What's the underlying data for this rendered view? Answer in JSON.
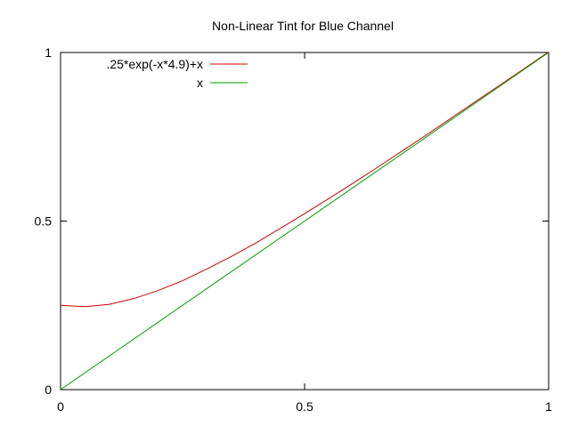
{
  "chart_data": {
    "type": "line",
    "title": "Non-Linear Tint for Blue Channel",
    "xlabel": "",
    "ylabel": "",
    "xlim": [
      0,
      1
    ],
    "ylim": [
      0,
      1
    ],
    "x_ticks": [
      {
        "value": 0,
        "label": "0"
      },
      {
        "value": 0.5,
        "label": "0.5"
      },
      {
        "value": 1,
        "label": "1"
      }
    ],
    "y_ticks": [
      {
        "value": 0,
        "label": "0"
      },
      {
        "value": 0.5,
        "label": "0.5"
      },
      {
        "value": 1,
        "label": "1"
      }
    ],
    "grid": false,
    "legend_position": "top-left",
    "series": [
      {
        "name": ".25*exp(-x*4.9)+x",
        "color": "#cc0000",
        "x": [
          0,
          0.05,
          0.1,
          0.15,
          0.2,
          0.25,
          0.3,
          0.35,
          0.4,
          0.45,
          0.5,
          0.55,
          0.6,
          0.65,
          0.7,
          0.75,
          0.8,
          0.85,
          0.9,
          0.95,
          1
        ],
        "y": [
          0.25,
          0.246,
          0.253,
          0.27,
          0.294,
          0.323,
          0.358,
          0.395,
          0.435,
          0.478,
          0.522,
          0.567,
          0.613,
          0.66,
          0.708,
          0.756,
          0.805,
          0.854,
          0.903,
          0.952,
          1.002
        ]
      },
      {
        "name": "x",
        "color": "#00a000",
        "x": [
          0,
          1
        ],
        "y": [
          0,
          1
        ]
      }
    ]
  }
}
